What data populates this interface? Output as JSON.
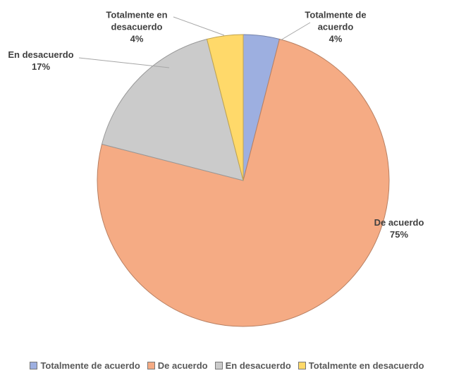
{
  "chart_data": {
    "type": "pie",
    "categories": [
      "Totalmente de acuerdo",
      "De acuerdo",
      "En desacuerdo",
      "Totalmente en desacuerdo"
    ],
    "values": [
      4,
      75,
      17,
      4
    ],
    "value_labels": [
      "4%",
      "75%",
      "17%",
      "4%"
    ],
    "colors": [
      "#9dafe0",
      "#f5ab84",
      "#cbcbcb",
      "#ffd96a"
    ],
    "legend": "bottom"
  }
}
